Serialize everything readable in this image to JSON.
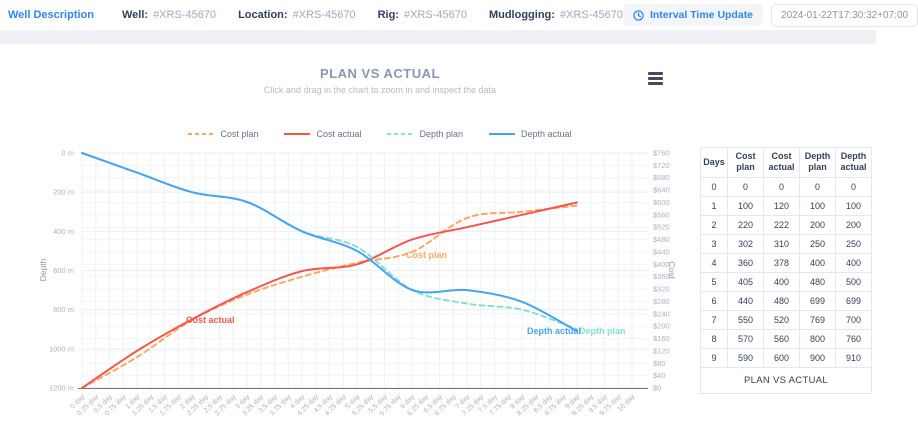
{
  "accent_color": "#2f86eb",
  "topbar": {
    "link_label": "Well Description",
    "fields": [
      {
        "label": "Well:",
        "value": "#XRS-45670"
      },
      {
        "label": "Location:",
        "value": "#XRS-45670"
      },
      {
        "label": "Rig:",
        "value": "#XRS-45670"
      },
      {
        "label": "Mudlogging:",
        "value": "#XRS-45670"
      }
    ],
    "interval_button_label": "Interval Time Update",
    "timestamp": "2024-01-22T17:30:32+07:00"
  },
  "chart_data": {
    "type": "line",
    "title": "PLAN VS ACTUAL",
    "subtitle": "Click and drag in the chart to zoom in and inspect the data",
    "grid": true,
    "legend_position": "top",
    "legend": [
      "Cost plan",
      "Cost actual",
      "Depth plan",
      "Depth actual"
    ],
    "x": [
      0,
      1,
      2,
      3,
      4,
      5,
      6,
      7,
      8,
      9
    ],
    "x_axis": {
      "min": 0,
      "max": 10,
      "tick_step": 0.25,
      "unit": "day",
      "ticks": [
        "0 day",
        "0.25 day",
        "0.5 day",
        "0.75 day",
        "1 day",
        "1.25 day",
        "1.5 day",
        "1.75 day",
        "2 day",
        "2.25 day",
        "2.5 day",
        "2.75 day",
        "3 day",
        "3.25 day",
        "3.5 day",
        "3.75 day",
        "4 day",
        "4.25 day",
        "4.5 day",
        "4.75 day",
        "5 day",
        "5.25 day",
        "5.5 day",
        "5.75 day",
        "6 day",
        "6.25 day",
        "6.5 day",
        "6.75 day",
        "7 day",
        "7.25 day",
        "7.5 day",
        "7.75 day",
        "8 day",
        "8.25 day",
        "8.5 day",
        "8.75 day",
        "9 day",
        "9.25 day",
        "9.5 day",
        "9.75 day",
        "10 day"
      ]
    },
    "y_left": {
      "label": "Depth",
      "min": 0,
      "max": 1200,
      "tick_step": 200,
      "unit": "m",
      "inverted": true,
      "ticks": [
        "0 m",
        "200 m",
        "400 m",
        "600 m",
        "800 m",
        "1000 m",
        "1200 m"
      ]
    },
    "y_right": {
      "label": "Cost",
      "min": 0,
      "max": 760,
      "tick_step": 40,
      "prefix": "$",
      "ticks": [
        "$760",
        "$720",
        "$680",
        "$640",
        "$600",
        "$560",
        "$520",
        "$480",
        "$440",
        "$400",
        "$360",
        "$320",
        "$280",
        "$240",
        "$200",
        "$160",
        "$120",
        "$80",
        "$40",
        "$0"
      ]
    },
    "series": [
      {
        "name": "Cost plan",
        "axis": "right",
        "style": "dashed",
        "color": "#faa95f",
        "values": [
          0,
          100,
          220,
          302,
          360,
          405,
          440,
          550,
          570,
          590
        ],
        "inline_label": {
          "text": "Cost plan",
          "x": 406,
          "y": 113
        }
      },
      {
        "name": "Cost actual",
        "axis": "right",
        "style": "solid",
        "color": "#f4564e",
        "values": [
          0,
          120,
          222,
          310,
          378,
          400,
          480,
          520,
          560,
          600
        ],
        "inline_label": {
          "text": "Cost actual",
          "x": 186,
          "y": 178
        }
      },
      {
        "name": "Depth plan",
        "axis": "left",
        "style": "dashed",
        "color": "#86e0cb",
        "values": [
          0,
          100,
          200,
          250,
          400,
          480,
          699,
          769,
          800,
          900
        ],
        "inline_label": {
          "text": "Depth plan",
          "x": 579,
          "y": 189
        }
      },
      {
        "name": "Depth actual",
        "axis": "left",
        "style": "solid",
        "color": "#45a5f2",
        "values": [
          0,
          100,
          200,
          250,
          400,
          500,
          699,
          700,
          760,
          910
        ],
        "inline_label": {
          "text": "Depth actual",
          "x": 527,
          "y": 189
        }
      }
    ]
  },
  "table": {
    "headers": [
      "Days",
      "Cost plan",
      "Cost actual",
      "Depth plan",
      "Depth actual"
    ],
    "rows": [
      [
        0,
        0,
        0,
        0,
        0
      ],
      [
        1,
        100,
        120,
        100,
        100
      ],
      [
        2,
        220,
        222,
        200,
        200
      ],
      [
        3,
        302,
        310,
        250,
        250
      ],
      [
        4,
        360,
        378,
        400,
        400
      ],
      [
        5,
        405,
        400,
        480,
        500
      ],
      [
        6,
        440,
        480,
        699,
        699
      ],
      [
        7,
        550,
        520,
        769,
        700
      ],
      [
        8,
        570,
        560,
        800,
        760
      ],
      [
        9,
        590,
        600,
        900,
        910
      ]
    ],
    "footer": "PLAN VS ACTUAL"
  }
}
